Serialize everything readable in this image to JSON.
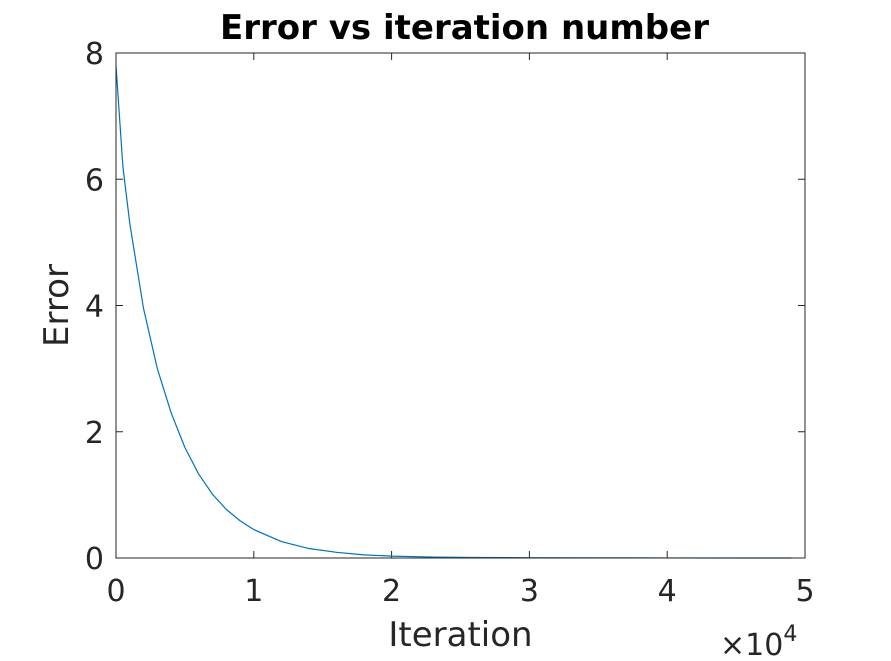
{
  "chart_data": {
    "type": "line",
    "title": "Error vs iteration number",
    "xlabel": "Iteration",
    "ylabel": "Error",
    "x_multiplier_text": "×10",
    "x_multiplier_exp": "4",
    "xlim": [
      0,
      50000
    ],
    "ylim": [
      0,
      8
    ],
    "xticks": [
      0,
      10000,
      20000,
      30000,
      40000,
      50000
    ],
    "xtick_labels": [
      "0",
      "1",
      "2",
      "3",
      "4",
      "5"
    ],
    "yticks": [
      0,
      2,
      4,
      6,
      8
    ],
    "ytick_labels": [
      "0",
      "2",
      "4",
      "6",
      "8"
    ],
    "grid": false,
    "series": [
      {
        "color": "#0072BD",
        "x": [
          0,
          500,
          1000,
          2000,
          3000,
          4000,
          5000,
          6000,
          7000,
          8000,
          9000,
          10000,
          12000,
          14000,
          16000,
          18000,
          20000,
          23000,
          26000,
          30000,
          35000,
          40000,
          45000,
          49000
        ],
        "y": [
          7.8,
          6.2,
          5.3,
          3.95,
          3.0,
          2.3,
          1.75,
          1.33,
          1.01,
          0.77,
          0.59,
          0.45,
          0.26,
          0.15,
          0.09,
          0.05,
          0.03,
          0.015,
          0.008,
          0.004,
          0.002,
          0.001,
          0.0005,
          0.0003
        ]
      }
    ]
  }
}
